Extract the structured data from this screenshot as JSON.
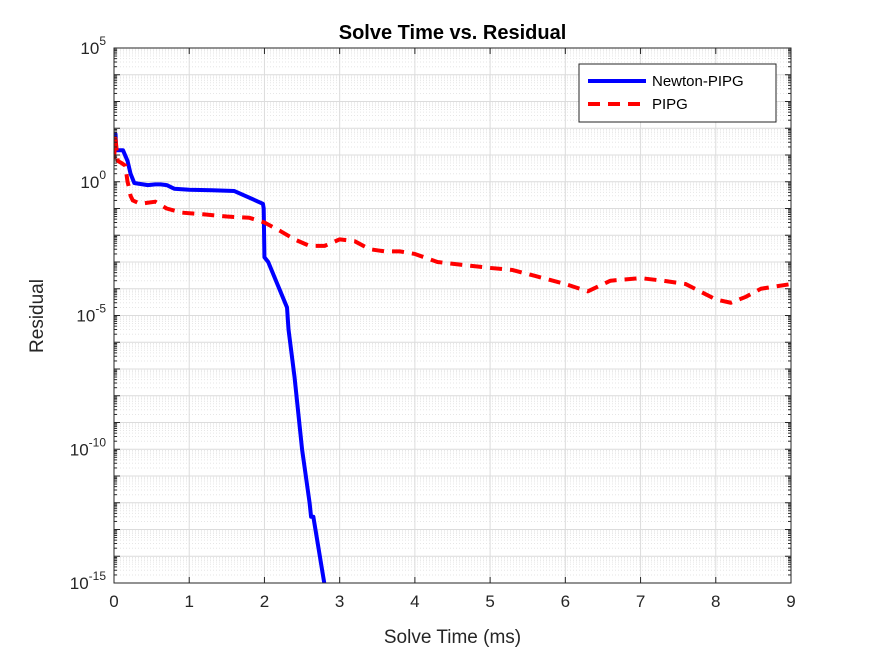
{
  "chart_data": {
    "type": "line",
    "title": "Solve Time vs. Residual",
    "xlabel": "Solve Time (ms)",
    "ylabel": "Residual",
    "xlim": [
      0,
      9
    ],
    "ylim": [
      1e-15,
      100000.0
    ],
    "yscale": "log",
    "grid": true,
    "minor_grid": true,
    "legend_position": "top-right",
    "x_ticks": [
      0,
      1,
      2,
      3,
      4,
      5,
      6,
      7,
      8,
      9
    ],
    "x_tick_labels": [
      "0",
      "1",
      "2",
      "3",
      "4",
      "5",
      "6",
      "7",
      "8",
      "9"
    ],
    "y_ticks": [
      {
        "value": 1e-15,
        "base": "10",
        "exp": "-15"
      },
      {
        "value": 1e-10,
        "base": "10",
        "exp": "-10"
      },
      {
        "value": 1e-05,
        "base": "10",
        "exp": "-5"
      },
      {
        "value": 1,
        "base": "10",
        "exp": "0"
      },
      {
        "value": 100000.0,
        "base": "10",
        "exp": "5"
      }
    ],
    "series": [
      {
        "name": "Newton-PIPG",
        "color": "#0000ff",
        "style": "solid",
        "x": [
          0.0,
          0.02,
          0.03,
          0.06,
          0.12,
          0.18,
          0.22,
          0.27,
          0.32,
          0.45,
          0.55,
          0.62,
          0.7,
          0.8,
          1.0,
          1.3,
          1.6,
          1.98,
          1.99,
          2.0,
          2.05,
          2.3,
          2.32,
          2.4,
          2.5,
          2.6,
          2.62,
          2.65,
          2.93
        ],
        "y": [
          30,
          60,
          15,
          15,
          15,
          6,
          2,
          0.9,
          0.85,
          0.75,
          0.8,
          0.8,
          0.75,
          0.55,
          0.5,
          0.48,
          0.45,
          0.15,
          0.1,
          0.0015,
          0.001,
          2e-05,
          3e-06,
          5e-08,
          1e-10,
          1e-12,
          3e-13,
          3e-13,
          5e-18
        ]
      },
      {
        "name": "PIPG",
        "color": "#ff0000",
        "style": "dashed",
        "x": [
          0.0,
          0.02,
          0.05,
          0.1,
          0.15,
          0.18,
          0.2,
          0.22,
          0.25,
          0.35,
          0.55,
          0.7,
          0.9,
          1.2,
          1.5,
          1.8,
          2.0,
          2.2,
          2.4,
          2.6,
          2.8,
          3.0,
          3.2,
          3.4,
          3.6,
          3.8,
          4.0,
          4.3,
          4.6,
          5.0,
          5.3,
          5.6,
          6.0,
          6.3,
          6.6,
          7.0,
          7.3,
          7.6,
          8.0,
          8.2,
          8.4,
          8.6,
          9.0
        ],
        "y": [
          7,
          40,
          6,
          5,
          4,
          1,
          0.6,
          0.3,
          0.2,
          0.15,
          0.18,
          0.1,
          0.07,
          0.06,
          0.05,
          0.045,
          0.03,
          0.015,
          0.007,
          0.004,
          0.004,
          0.007,
          0.006,
          0.003,
          0.0025,
          0.0025,
          0.002,
          0.001,
          0.0008,
          0.0006,
          0.0005,
          0.0003,
          0.00015,
          8e-05,
          0.0002,
          0.00025,
          0.0002,
          0.00015,
          4e-05,
          3e-05,
          5e-05,
          0.0001,
          0.00015
        ]
      }
    ]
  }
}
